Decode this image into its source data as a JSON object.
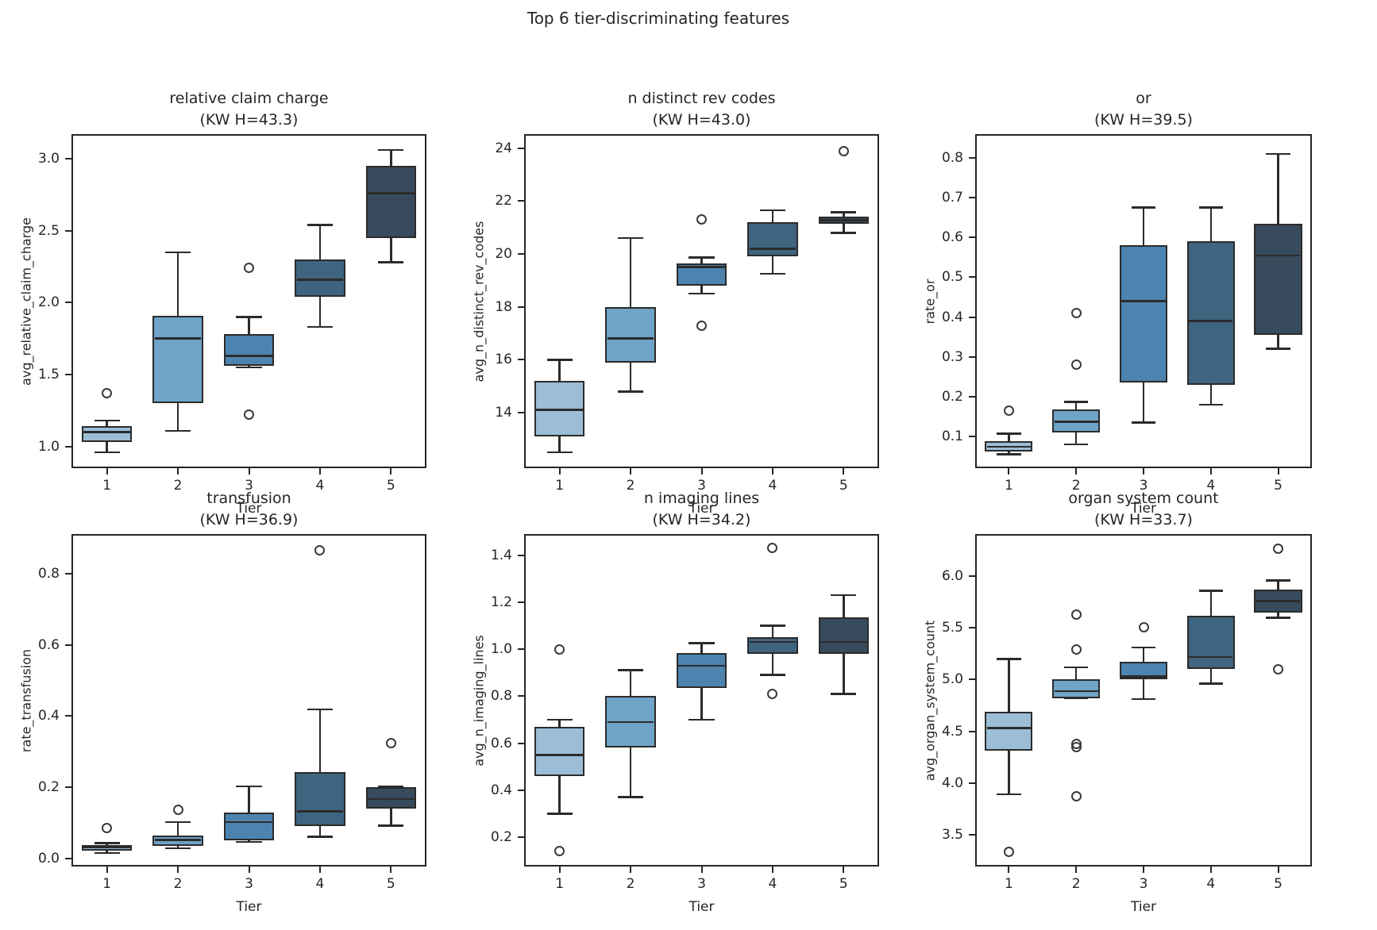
{
  "figure": {
    "title": "Top 6 tier-discriminating features",
    "xlabel": "Tier",
    "background": "#ffffff",
    "text_color": "#262626",
    "box_edge_color": "#2b2b2b",
    "flier_edge_color": "#3a3a3a",
    "tier_colors": [
      "#9bbdd6",
      "#6fa3c7",
      "#4d84af",
      "#3f6480",
      "#374b5c"
    ]
  },
  "chart_data": [
    {
      "type": "box",
      "title": "relative claim charge",
      "subtitle": "(KW H=43.3)",
      "kw_h": 43.3,
      "ylabel": "avg_relative_claim_charge",
      "xlabel": "Tier",
      "categories": [
        "1",
        "2",
        "3",
        "4",
        "5"
      ],
      "yticks": [
        "1.0",
        "1.5",
        "2.0",
        "2.5",
        "3.0"
      ],
      "ylim": [
        0.85,
        3.17
      ],
      "boxes": [
        {
          "tier": "1",
          "whislo": 0.96,
          "q1": 1.03,
          "med": 1.1,
          "q3": 1.14,
          "whishi": 1.18,
          "fliers": [
            1.37
          ]
        },
        {
          "tier": "2",
          "whislo": 1.11,
          "q1": 1.3,
          "med": 1.75,
          "q3": 1.91,
          "whishi": 2.35,
          "fliers": []
        },
        {
          "tier": "3",
          "whislo": 1.55,
          "q1": 1.56,
          "med": 1.63,
          "q3": 1.78,
          "whishi": 1.9,
          "fliers": [
            2.24,
            1.22
          ]
        },
        {
          "tier": "4",
          "whislo": 1.83,
          "q1": 2.04,
          "med": 2.16,
          "q3": 2.3,
          "whishi": 2.54,
          "fliers": []
        },
        {
          "tier": "5",
          "whislo": 2.28,
          "q1": 2.45,
          "med": 2.76,
          "q3": 2.95,
          "whishi": 3.06,
          "fliers": []
        }
      ]
    },
    {
      "type": "box",
      "title": "n distinct rev codes",
      "subtitle": "(KW H=43.0)",
      "kw_h": 43.0,
      "ylabel": "avg_n_distinct_rev_codes",
      "xlabel": "Tier",
      "categories": [
        "1",
        "2",
        "3",
        "4",
        "5"
      ],
      "yticks": [
        "14",
        "16",
        "18",
        "20",
        "22",
        "24"
      ],
      "ylim": [
        11.9,
        24.53
      ],
      "boxes": [
        {
          "tier": "1",
          "whislo": 12.5,
          "q1": 13.1,
          "med": 14.1,
          "q3": 15.2,
          "whishi": 16.0,
          "fliers": []
        },
        {
          "tier": "2",
          "whislo": 14.8,
          "q1": 15.9,
          "med": 16.8,
          "q3": 18.0,
          "whishi": 20.6,
          "fliers": []
        },
        {
          "tier": "3",
          "whislo": 18.5,
          "q1": 18.8,
          "med": 19.5,
          "q3": 19.64,
          "whishi": 19.87,
          "fliers": [
            21.3,
            17.3
          ]
        },
        {
          "tier": "4",
          "whislo": 19.25,
          "q1": 19.9,
          "med": 20.2,
          "q3": 21.2,
          "whishi": 21.65,
          "fliers": []
        },
        {
          "tier": "5",
          "whislo": 20.8,
          "q1": 21.13,
          "med": 21.27,
          "q3": 21.41,
          "whishi": 21.58,
          "fliers": [
            23.9
          ]
        }
      ]
    },
    {
      "type": "box",
      "title": "or",
      "subtitle": "(KW H=39.5)",
      "kw_h": 39.5,
      "ylabel": "rate_or",
      "xlabel": "Tier",
      "categories": [
        "1",
        "2",
        "3",
        "4",
        "5"
      ],
      "yticks": [
        "0.1",
        "0.2",
        "0.3",
        "0.4",
        "0.5",
        "0.6",
        "0.7",
        "0.8"
      ],
      "ylim": [
        0.02,
        0.86
      ],
      "boxes": [
        {
          "tier": "1",
          "whislo": 0.055,
          "q1": 0.061,
          "med": 0.074,
          "q3": 0.088,
          "whishi": 0.107,
          "fliers": [
            0.164
          ]
        },
        {
          "tier": "2",
          "whislo": 0.08,
          "q1": 0.11,
          "med": 0.137,
          "q3": 0.167,
          "whishi": 0.187,
          "fliers": [
            0.41,
            0.28
          ]
        },
        {
          "tier": "3",
          "whislo": 0.135,
          "q1": 0.235,
          "med": 0.44,
          "q3": 0.58,
          "whishi": 0.675,
          "fliers": []
        },
        {
          "tier": "4",
          "whislo": 0.18,
          "q1": 0.23,
          "med": 0.39,
          "q3": 0.59,
          "whishi": 0.675,
          "fliers": []
        },
        {
          "tier": "5",
          "whislo": 0.32,
          "q1": 0.355,
          "med": 0.555,
          "q3": 0.635,
          "whishi": 0.81,
          "fliers": []
        }
      ]
    },
    {
      "type": "box",
      "title": "transfusion",
      "subtitle": "(KW H=36.9)",
      "kw_h": 36.9,
      "ylabel": "rate_transfusion",
      "xlabel": "Tier",
      "categories": [
        "1",
        "2",
        "3",
        "4",
        "5"
      ],
      "yticks": [
        "0.0",
        "0.2",
        "0.4",
        "0.6",
        "0.8"
      ],
      "ylim": [
        -0.023,
        0.912
      ],
      "boxes": [
        {
          "tier": "1",
          "whislo": 0.015,
          "q1": 0.022,
          "med": 0.032,
          "q3": 0.038,
          "whishi": 0.043,
          "fliers": [
            0.085
          ]
        },
        {
          "tier": "2",
          "whislo": 0.028,
          "q1": 0.035,
          "med": 0.052,
          "q3": 0.065,
          "whishi": 0.102,
          "fliers": [
            0.136
          ]
        },
        {
          "tier": "3",
          "whislo": 0.046,
          "q1": 0.05,
          "med": 0.102,
          "q3": 0.128,
          "whishi": 0.202,
          "fliers": []
        },
        {
          "tier": "4",
          "whislo": 0.061,
          "q1": 0.091,
          "med": 0.132,
          "q3": 0.242,
          "whishi": 0.419,
          "fliers": [
            0.867
          ]
        },
        {
          "tier": "5",
          "whislo": 0.092,
          "q1": 0.139,
          "med": 0.167,
          "q3": 0.201,
          "whishi": 0.201,
          "fliers": [
            0.325
          ]
        }
      ]
    },
    {
      "type": "box",
      "title": "n imaging lines",
      "subtitle": "(KW H=34.2)",
      "kw_h": 34.2,
      "ylabel": "avg_n_imaging_lines",
      "xlabel": "Tier",
      "categories": [
        "1",
        "2",
        "3",
        "4",
        "5"
      ],
      "yticks": [
        "0.2",
        "0.4",
        "0.6",
        "0.8",
        "1.0",
        "1.2",
        "1.4"
      ],
      "ylim": [
        0.075,
        1.49
      ],
      "boxes": [
        {
          "tier": "1",
          "whislo": 0.3,
          "q1": 0.46,
          "med": 0.55,
          "q3": 0.67,
          "whishi": 0.7,
          "fliers": [
            1.0,
            0.14
          ]
        },
        {
          "tier": "2",
          "whislo": 0.37,
          "q1": 0.58,
          "med": 0.69,
          "q3": 0.8,
          "whishi": 0.91,
          "fliers": []
        },
        {
          "tier": "3",
          "whislo": 0.7,
          "q1": 0.835,
          "med": 0.93,
          "q3": 0.985,
          "whishi": 1.025,
          "fliers": []
        },
        {
          "tier": "4",
          "whislo": 0.89,
          "q1": 0.98,
          "med": 1.03,
          "q3": 1.05,
          "whishi": 1.1,
          "fliers": [
            1.43,
            0.81
          ]
        },
        {
          "tier": "5",
          "whislo": 0.81,
          "q1": 0.98,
          "med": 1.03,
          "q3": 1.135,
          "whishi": 1.23,
          "fliers": []
        }
      ]
    },
    {
      "type": "box",
      "title": "organ system count",
      "subtitle": "(KW H=33.7)",
      "kw_h": 33.7,
      "ylabel": "avg_organ_system_count",
      "xlabel": "Tier",
      "categories": [
        "1",
        "2",
        "3",
        "4",
        "5"
      ],
      "yticks": [
        "3.5",
        "4.0",
        "4.5",
        "5.0",
        "5.5",
        "6.0"
      ],
      "ylim": [
        3.19,
        6.41
      ],
      "boxes": [
        {
          "tier": "1",
          "whislo": 3.89,
          "q1": 4.31,
          "med": 4.53,
          "q3": 4.69,
          "whishi": 5.2,
          "fliers": [
            3.33
          ]
        },
        {
          "tier": "2",
          "whislo": 4.82,
          "q1": 4.82,
          "med": 4.89,
          "q3": 5.0,
          "whishi": 5.12,
          "fliers": [
            5.63,
            5.29,
            4.38,
            4.35,
            3.87
          ]
        },
        {
          "tier": "3",
          "whislo": 4.81,
          "q1": 5.0,
          "med": 5.03,
          "q3": 5.17,
          "whishi": 5.31,
          "fliers": [
            5.51
          ]
        },
        {
          "tier": "4",
          "whislo": 4.96,
          "q1": 5.1,
          "med": 5.22,
          "q3": 5.62,
          "whishi": 5.86,
          "fliers": []
        },
        {
          "tier": "5",
          "whislo": 5.6,
          "q1": 5.65,
          "med": 5.76,
          "q3": 5.87,
          "whishi": 5.96,
          "fliers": [
            6.27,
            5.1
          ]
        }
      ]
    }
  ]
}
